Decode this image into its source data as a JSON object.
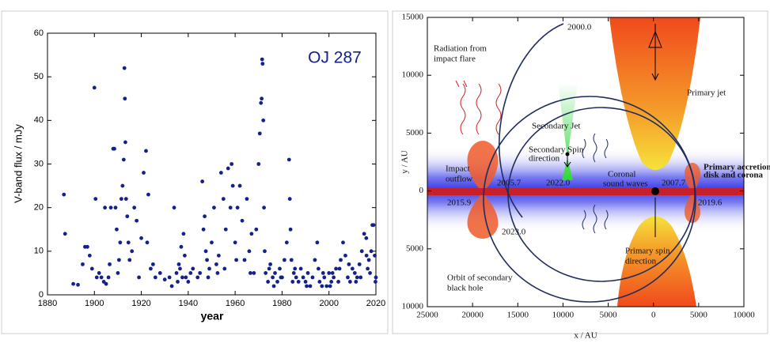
{
  "chart_data": [
    {
      "type": "scatter",
      "title": "OJ 287",
      "xlabel": "year",
      "ylabel": "V-band flux / mJy",
      "color": "#14218a",
      "xlim": [
        1880,
        2020
      ],
      "xticks": [
        1880,
        1900,
        1920,
        1940,
        1960,
        1980,
        2000,
        2020
      ],
      "ylim": [
        0,
        60
      ],
      "yticks": [
        0,
        10,
        20,
        30,
        40,
        50,
        60
      ],
      "x": [
        1887,
        1887.5,
        1891,
        1893,
        1895,
        1896,
        1897,
        1898,
        1899,
        1900,
        1900.5,
        1901,
        1902,
        1903,
        1904,
        1904.5,
        1905,
        1906,
        1906.5,
        1907,
        1908,
        1908.5,
        1909,
        1909.5,
        1910,
        1910.5,
        1911,
        1911.5,
        1912,
        1912.5,
        1912.8,
        1913,
        1913.2,
        1913.5,
        1914,
        1914.5,
        1915,
        1916,
        1917,
        1918,
        1919,
        1920,
        1921,
        1922,
        1922.5,
        1923,
        1924,
        1925,
        1926,
        1928,
        1930,
        1932,
        1933,
        1934,
        1935,
        1936,
        1937,
        1938,
        1939,
        1940,
        1941,
        1942,
        1944,
        1946,
        1947,
        1947.5,
        1948,
        1949,
        1950,
        1951,
        1952,
        1953,
        1954,
        1955,
        1956,
        1957,
        1958,
        1958.5,
        1959,
        1960,
        1961,
        1962,
        1963,
        1964,
        1965,
        1966,
        1967,
        1968,
        1969,
        1970,
        1970.5,
        1971,
        1971.3,
        1971.5,
        1971.7,
        1972,
        1972.3,
        1972.6,
        1973,
        1974,
        1975,
        1976,
        1977,
        1978,
        1979,
        1980,
        1981,
        1982,
        1983,
        1983.3,
        1983.6,
        1984,
        1985,
        1986,
        1987,
        1988,
        1989,
        1990,
        1991,
        1992,
        1993,
        1994,
        1995,
        1995.5,
        1996,
        1997,
        1998,
        1999,
        2000,
        2001,
        2002,
        2003,
        2004,
        2005,
        2006,
        2007,
        2008,
        2009,
        2010,
        2011,
        2012,
        2013,
        2014,
        2015,
        2015.9,
        2016.5,
        2017,
        2018,
        2018.5,
        2019,
        2019.5,
        2020,
        1935.5,
        1936.5,
        1937.5,
        1938.5,
        1945,
        1946.5,
        1948.5,
        1952.5,
        1955.5,
        1960.5,
        1966.5,
        1974.5,
        1976.5,
        1979.5,
        1984.5,
        1985.5,
        1990.5,
        1997.5,
        2000.5,
        2001.5,
        2004.5,
        2008.5,
        2011.5,
        2013.5,
        2016,
        2017.5,
        2019.8
      ],
      "values": [
        23,
        14,
        2.5,
        2.3,
        7,
        11,
        11,
        9,
        6,
        47.5,
        22,
        4,
        5,
        4,
        3,
        20,
        2.5,
        4,
        7,
        20,
        33.5,
        33.5,
        20,
        15,
        5,
        8,
        12,
        22,
        25,
        31,
        52,
        45,
        35,
        22,
        18,
        12,
        8,
        10,
        20,
        17,
        4,
        13,
        28,
        33,
        12,
        23,
        6,
        7,
        4,
        5,
        3.5,
        4,
        2,
        20,
        5,
        7,
        11,
        14,
        4,
        3,
        5,
        6,
        4,
        26,
        18,
        10,
        8,
        6,
        12,
        20,
        7,
        9,
        28,
        22,
        15,
        29,
        20,
        30,
        25,
        12,
        20,
        25,
        17,
        8,
        22,
        10,
        14,
        5,
        15,
        30,
        37,
        44,
        45,
        54,
        53,
        40,
        20,
        10,
        5,
        3,
        7,
        4,
        5,
        3,
        6,
        4,
        8,
        12,
        31,
        22,
        15,
        8,
        5,
        4,
        3,
        6,
        4,
        3,
        5,
        2,
        4,
        8,
        12,
        6,
        3,
        2,
        4,
        2,
        5,
        3,
        4,
        6,
        3,
        8,
        12,
        9,
        4,
        3,
        6,
        5,
        4,
        7,
        10,
        14,
        13,
        6,
        8,
        10,
        16,
        16,
        9,
        4,
        3,
        6,
        4,
        9,
        5,
        15,
        4,
        5,
        6,
        8,
        5,
        6,
        2,
        4,
        3,
        6,
        2,
        5,
        2,
        5,
        6,
        7,
        3,
        4,
        9,
        5,
        3
      ]
    },
    {
      "type": "diagram",
      "xlabel": "x / AU",
      "ylabel": "y / AU",
      "xlim": [
        25000,
        -10000
      ],
      "xticks": [
        25000,
        20000,
        15000,
        10000,
        5000,
        0,
        {
          "value": -5000,
          "label": "5000"
        },
        {
          "value": -10000,
          "label": "10000"
        }
      ],
      "ylim": [
        -10000,
        15000
      ],
      "yticks": [
        15000,
        10000,
        5000,
        0,
        {
          "value": -5000,
          "label": "5000"
        },
        {
          "value": -10000,
          "label": "10000"
        }
      ],
      "annotations": [
        "2000.0",
        [
          "Radiation from",
          "impact flare"
        ],
        "Primary jet",
        "Secondary Jet",
        [
          "Secondary Spin",
          "direction"
        ],
        [
          "Impact",
          "outflow"
        ],
        "2005.7",
        "2022.0",
        [
          "Coronal",
          "sound waves"
        ],
        "2007.7",
        [
          "Primary accretion",
          "disk and corona"
        ],
        "2015.9",
        "2019.6",
        "2023.0",
        [
          "Primary spin",
          "direction"
        ],
        [
          "Orbit of secondary",
          "black hole"
        ]
      ]
    }
  ]
}
